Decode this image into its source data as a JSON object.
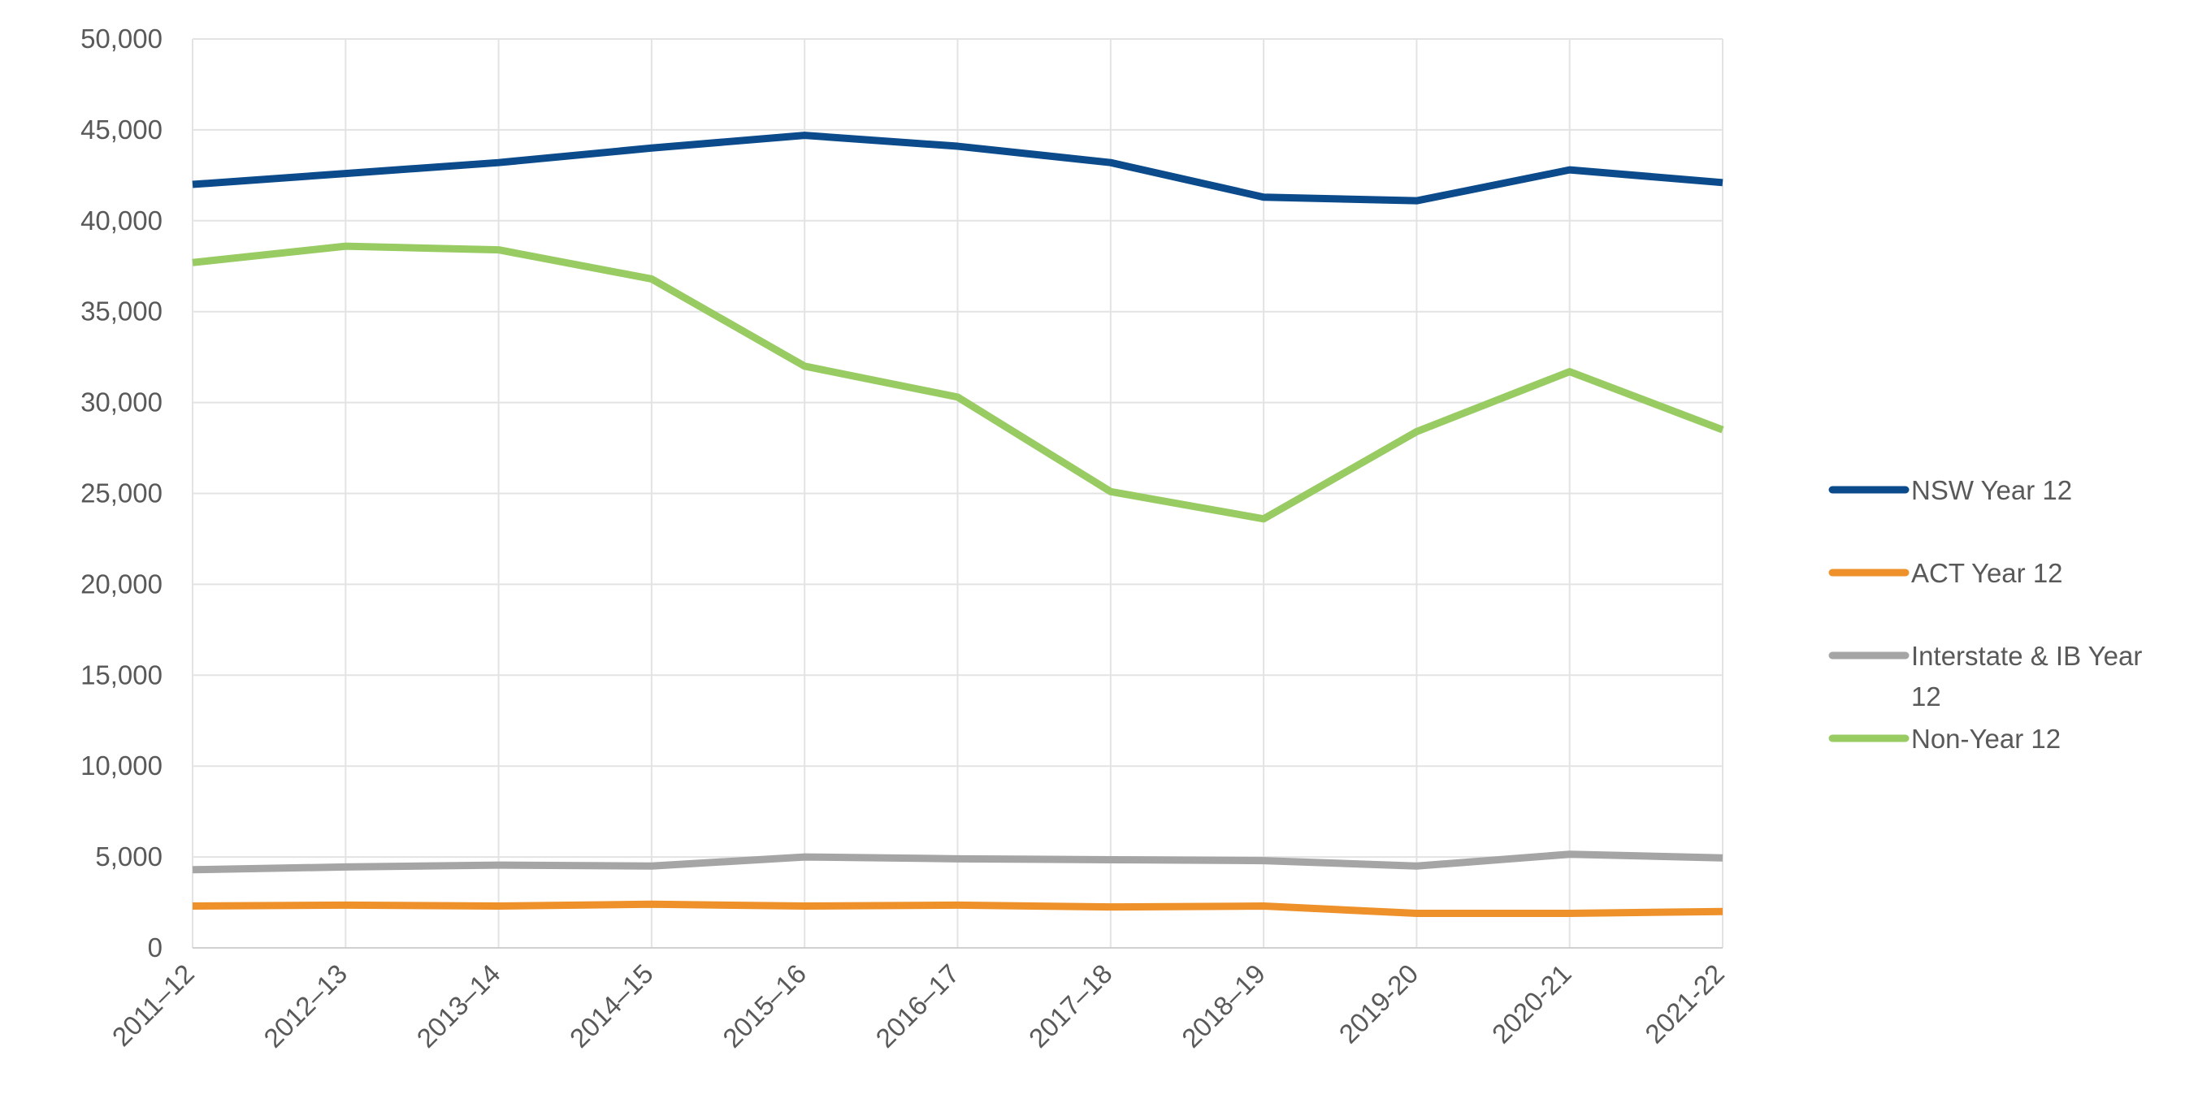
{
  "chart_data": {
    "type": "line",
    "title": "",
    "xlabel": "",
    "ylabel": "",
    "categories": [
      "2011–12",
      "2012–13",
      "2013–14",
      "2014–15",
      "2015–16",
      "2016–17",
      "2017–18",
      "2018–19",
      "2019-20",
      "2020-21",
      "2021-22"
    ],
    "ylim": [
      0,
      50000
    ],
    "yticks": [
      0,
      5000,
      10000,
      15000,
      20000,
      25000,
      30000,
      35000,
      40000,
      45000,
      50000
    ],
    "ytick_labels": [
      "0",
      "5,000",
      "10,000",
      "15,000",
      "20,000",
      "25,000",
      "30,000",
      "35,000",
      "40,000",
      "45,000",
      "50,000"
    ],
    "grid": true,
    "legend_position": "right",
    "series": [
      {
        "name": "NSW Year 12",
        "legend_lines": [
          "NSW Year 12"
        ],
        "color": "#0b4a8b",
        "values": [
          42000,
          42600,
          43200,
          44000,
          44700,
          44100,
          43200,
          41300,
          41100,
          42800,
          42100
        ]
      },
      {
        "name": "ACT Year 12",
        "legend_lines": [
          "ACT Year 12"
        ],
        "color": "#ee912a",
        "values": [
          2300,
          2350,
          2300,
          2400,
          2300,
          2350,
          2250,
          2300,
          1900,
          1900,
          2000
        ]
      },
      {
        "name": "Interstate & IB Year 12",
        "legend_lines": [
          "Interstate & IB Year",
          "12"
        ],
        "color": "#a5a5a5",
        "values": [
          4300,
          4450,
          4550,
          4500,
          5000,
          4900,
          4850,
          4800,
          4500,
          5150,
          4950
        ]
      },
      {
        "name": "Non-Year 12",
        "legend_lines": [
          "Non-Year 12"
        ],
        "color": "#98cb62",
        "values": [
          37700,
          38600,
          38400,
          36800,
          32000,
          30300,
          25100,
          23600,
          28400,
          31700,
          28500
        ]
      }
    ]
  }
}
